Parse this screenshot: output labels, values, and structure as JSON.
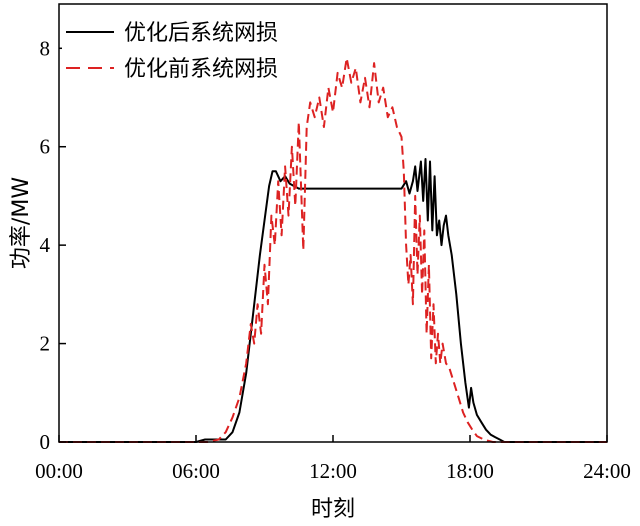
{
  "chart_data": {
    "type": "line",
    "xlabel": "时刻",
    "ylabel": "功率/MW",
    "x_ticks": [
      "00:00",
      "06:00",
      "12:00",
      "18:00",
      "24:00"
    ],
    "x_tick_hours": [
      0,
      6,
      12,
      18,
      24
    ],
    "y_ticks": [
      "0",
      "2",
      "4",
      "6",
      "8"
    ],
    "xlim_hours": [
      0,
      24
    ],
    "ylim": [
      0,
      8.9
    ],
    "grid": false,
    "legend_position": "top-left",
    "series": [
      {
        "name": "优化后系统网损",
        "color": "#000000",
        "style": "solid",
        "points": [
          [
            0,
            0
          ],
          [
            6,
            0
          ],
          [
            6.4,
            0.05
          ],
          [
            6.8,
            0.05
          ],
          [
            7.3,
            0.05
          ],
          [
            7.6,
            0.2
          ],
          [
            7.9,
            0.6
          ],
          [
            8.2,
            1.4
          ],
          [
            8.5,
            2.6
          ],
          [
            8.8,
            3.8
          ],
          [
            9.0,
            4.5
          ],
          [
            9.2,
            5.2
          ],
          [
            9.35,
            5.5
          ],
          [
            9.5,
            5.5
          ],
          [
            9.7,
            5.3
          ],
          [
            9.9,
            5.4
          ],
          [
            10.1,
            5.25
          ],
          [
            10.3,
            5.2
          ],
          [
            10.5,
            5.15
          ],
          [
            11,
            5.15
          ],
          [
            12,
            5.15
          ],
          [
            13,
            5.15
          ],
          [
            14,
            5.15
          ],
          [
            15.0,
            5.15
          ],
          [
            15.2,
            5.3
          ],
          [
            15.35,
            5.05
          ],
          [
            15.5,
            5.3
          ],
          [
            15.6,
            5.6
          ],
          [
            15.7,
            5.1
          ],
          [
            15.85,
            5.7
          ],
          [
            15.95,
            4.9
          ],
          [
            16.05,
            5.75
          ],
          [
            16.15,
            4.5
          ],
          [
            16.25,
            5.7
          ],
          [
            16.35,
            4.3
          ],
          [
            16.45,
            5.4
          ],
          [
            16.55,
            4.2
          ],
          [
            16.65,
            4.5
          ],
          [
            16.75,
            4.0
          ],
          [
            16.85,
            4.4
          ],
          [
            16.95,
            4.6
          ],
          [
            17.05,
            4.2
          ],
          [
            17.2,
            3.8
          ],
          [
            17.4,
            3.0
          ],
          [
            17.6,
            2.0
          ],
          [
            17.8,
            1.2
          ],
          [
            17.95,
            0.7
          ],
          [
            18.05,
            1.1
          ],
          [
            18.15,
            0.8
          ],
          [
            18.3,
            0.55
          ],
          [
            18.5,
            0.4
          ],
          [
            18.7,
            0.25
          ],
          [
            18.9,
            0.15
          ],
          [
            19.1,
            0.1
          ],
          [
            19.3,
            0.05
          ],
          [
            19.5,
            0.0
          ],
          [
            24,
            0
          ]
        ]
      },
      {
        "name": "优化前系统网损",
        "color": "#dd2222",
        "style": "dashed",
        "points": [
          [
            0,
            0
          ],
          [
            6.5,
            0
          ],
          [
            7.0,
            0.05
          ],
          [
            7.3,
            0.2
          ],
          [
            7.6,
            0.5
          ],
          [
            7.9,
            0.9
          ],
          [
            8.2,
            1.6
          ],
          [
            8.4,
            2.4
          ],
          [
            8.55,
            2.0
          ],
          [
            8.7,
            2.8
          ],
          [
            8.85,
            2.2
          ],
          [
            9.0,
            3.6
          ],
          [
            9.15,
            2.8
          ],
          [
            9.3,
            4.6
          ],
          [
            9.45,
            4.0
          ],
          [
            9.6,
            5.3
          ],
          [
            9.75,
            4.2
          ],
          [
            9.9,
            5.6
          ],
          [
            10.05,
            4.6
          ],
          [
            10.2,
            6.0
          ],
          [
            10.35,
            4.8
          ],
          [
            10.5,
            6.5
          ],
          [
            10.7,
            3.9
          ],
          [
            10.85,
            6.4
          ],
          [
            11.0,
            6.9
          ],
          [
            11.2,
            6.6
          ],
          [
            11.4,
            7.0
          ],
          [
            11.6,
            6.4
          ],
          [
            11.8,
            7.2
          ],
          [
            12.0,
            6.7
          ],
          [
            12.2,
            7.5
          ],
          [
            12.4,
            7.2
          ],
          [
            12.6,
            7.8
          ],
          [
            12.8,
            7.3
          ],
          [
            13.0,
            7.6
          ],
          [
            13.2,
            6.9
          ],
          [
            13.4,
            7.4
          ],
          [
            13.6,
            6.8
          ],
          [
            13.8,
            7.7
          ],
          [
            14.0,
            6.9
          ],
          [
            14.2,
            7.2
          ],
          [
            14.4,
            6.6
          ],
          [
            14.6,
            6.8
          ],
          [
            14.8,
            6.4
          ],
          [
            15.0,
            6.2
          ],
          [
            15.1,
            5.5
          ],
          [
            15.2,
            4.0
          ],
          [
            15.3,
            3.2
          ],
          [
            15.4,
            3.8
          ],
          [
            15.5,
            2.8
          ],
          [
            15.6,
            5.0
          ],
          [
            15.7,
            3.4
          ],
          [
            15.8,
            4.6
          ],
          [
            15.9,
            3.0
          ],
          [
            16.0,
            4.3
          ],
          [
            16.1,
            2.2
          ],
          [
            16.2,
            3.6
          ],
          [
            16.3,
            1.7
          ],
          [
            16.4,
            2.8
          ],
          [
            16.5,
            1.6
          ],
          [
            16.6,
            2.2
          ],
          [
            16.7,
            1.6
          ],
          [
            16.8,
            2.0
          ],
          [
            16.95,
            1.6
          ],
          [
            17.1,
            1.5
          ],
          [
            17.3,
            1.2
          ],
          [
            17.5,
            0.9
          ],
          [
            17.7,
            0.6
          ],
          [
            17.9,
            0.4
          ],
          [
            18.1,
            0.25
          ],
          [
            18.3,
            0.12
          ],
          [
            18.6,
            0.05
          ],
          [
            19.0,
            0
          ],
          [
            24,
            0
          ]
        ]
      }
    ]
  }
}
